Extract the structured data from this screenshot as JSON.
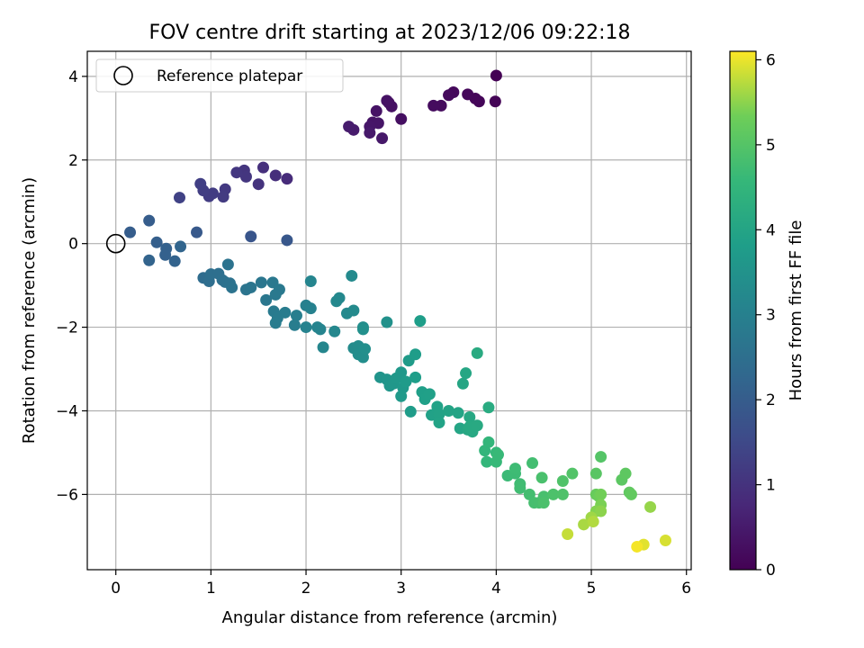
{
  "chart_data": {
    "type": "scatter",
    "title": "FOV centre drift starting at 2023/12/06 09:22:18",
    "xlabel": "Angular distance from reference (arcmin)",
    "ylabel": "Rotation from reference (arcmin)",
    "xlim": [
      -0.3,
      6.05
    ],
    "ylim": [
      -7.8,
      4.6
    ],
    "x_ticks": [
      0,
      1,
      2,
      3,
      4,
      5,
      6
    ],
    "y_ticks": [
      -6,
      -4,
      -2,
      0,
      2,
      4
    ],
    "grid": true,
    "legend": {
      "placement": "top-left",
      "entries": [
        "Reference platepar"
      ]
    },
    "colorbar": {
      "label": "Hours from first FF file",
      "range": [
        0,
        6.1
      ],
      "ticks": [
        0,
        1,
        2,
        3,
        4,
        5,
        6
      ],
      "colormap": "viridis"
    },
    "reference_point": {
      "x": 0,
      "y": 0
    },
    "points": [
      {
        "x": 4.0,
        "y": 4.02,
        "h": 0.0
      },
      {
        "x": 3.99,
        "y": 3.4,
        "h": 0.05
      },
      {
        "x": 3.82,
        "y": 3.4,
        "h": 0.08
      },
      {
        "x": 3.78,
        "y": 3.47,
        "h": 0.1
      },
      {
        "x": 3.7,
        "y": 3.57,
        "h": 0.12
      },
      {
        "x": 3.55,
        "y": 3.62,
        "h": 0.15
      },
      {
        "x": 3.5,
        "y": 3.55,
        "h": 0.18
      },
      {
        "x": 3.42,
        "y": 3.3,
        "h": 0.2
      },
      {
        "x": 3.34,
        "y": 3.3,
        "h": 0.22
      },
      {
        "x": 3.0,
        "y": 2.98,
        "h": 0.28
      },
      {
        "x": 2.87,
        "y": 3.37,
        "h": 0.3
      },
      {
        "x": 2.9,
        "y": 3.28,
        "h": 0.32
      },
      {
        "x": 2.85,
        "y": 3.42,
        "h": 0.33
      },
      {
        "x": 2.74,
        "y": 3.17,
        "h": 0.35
      },
      {
        "x": 2.7,
        "y": 2.9,
        "h": 0.38
      },
      {
        "x": 2.76,
        "y": 2.88,
        "h": 0.4
      },
      {
        "x": 2.67,
        "y": 2.8,
        "h": 0.42
      },
      {
        "x": 2.8,
        "y": 2.52,
        "h": 0.45
      },
      {
        "x": 2.67,
        "y": 2.65,
        "h": 0.48
      },
      {
        "x": 2.5,
        "y": 2.72,
        "h": 0.5
      },
      {
        "x": 2.45,
        "y": 2.8,
        "h": 0.52
      },
      {
        "x": 1.8,
        "y": 1.55,
        "h": 0.85
      },
      {
        "x": 1.68,
        "y": 1.63,
        "h": 0.9
      },
      {
        "x": 1.55,
        "y": 1.82,
        "h": 0.95
      },
      {
        "x": 1.5,
        "y": 1.42,
        "h": 1.0
      },
      {
        "x": 1.35,
        "y": 1.75,
        "h": 1.05
      },
      {
        "x": 1.37,
        "y": 1.6,
        "h": 1.08
      },
      {
        "x": 1.27,
        "y": 1.7,
        "h": 1.1
      },
      {
        "x": 1.15,
        "y": 1.3,
        "h": 1.15
      },
      {
        "x": 1.13,
        "y": 1.12,
        "h": 1.18
      },
      {
        "x": 1.02,
        "y": 1.2,
        "h": 1.2
      },
      {
        "x": 0.98,
        "y": 1.13,
        "h": 1.22
      },
      {
        "x": 0.92,
        "y": 1.27,
        "h": 1.25
      },
      {
        "x": 0.89,
        "y": 1.43,
        "h": 1.28
      },
      {
        "x": 0.67,
        "y": 1.1,
        "h": 1.35
      },
      {
        "x": 1.42,
        "y": 0.17,
        "h": 1.8
      },
      {
        "x": 1.8,
        "y": 0.08,
        "h": 1.85
      },
      {
        "x": 0.85,
        "y": 0.27,
        "h": 1.9
      },
      {
        "x": 0.15,
        "y": 0.27,
        "h": 2.0
      },
      {
        "x": 0.35,
        "y": 0.55,
        "h": 2.02
      },
      {
        "x": 0.43,
        "y": 0.03,
        "h": 2.05
      },
      {
        "x": 0.53,
        "y": -0.12,
        "h": 2.1
      },
      {
        "x": 0.52,
        "y": -0.27,
        "h": 2.12
      },
      {
        "x": 0.62,
        "y": -0.42,
        "h": 2.15
      },
      {
        "x": 0.35,
        "y": -0.4,
        "h": 2.18
      },
      {
        "x": 0.68,
        "y": -0.07,
        "h": 2.2
      },
      {
        "x": 0.92,
        "y": -0.82,
        "h": 2.4
      },
      {
        "x": 0.98,
        "y": -0.9,
        "h": 2.45
      },
      {
        "x": 1.0,
        "y": -0.73,
        "h": 2.48
      },
      {
        "x": 1.08,
        "y": -0.72,
        "h": 2.5
      },
      {
        "x": 1.12,
        "y": -0.87,
        "h": 2.52
      },
      {
        "x": 1.15,
        "y": -0.92,
        "h": 2.55
      },
      {
        "x": 1.2,
        "y": -0.95,
        "h": 2.58
      },
      {
        "x": 1.18,
        "y": -0.5,
        "h": 2.6
      },
      {
        "x": 1.22,
        "y": -1.05,
        "h": 2.62
      },
      {
        "x": 1.37,
        "y": -1.1,
        "h": 2.65
      },
      {
        "x": 1.42,
        "y": -1.05,
        "h": 2.68
      },
      {
        "x": 1.53,
        "y": -0.93,
        "h": 2.7
      },
      {
        "x": 1.58,
        "y": -1.35,
        "h": 2.72
      },
      {
        "x": 1.65,
        "y": -0.93,
        "h": 2.75
      },
      {
        "x": 1.72,
        "y": -1.1,
        "h": 2.78
      },
      {
        "x": 1.68,
        "y": -1.22,
        "h": 2.8
      },
      {
        "x": 1.66,
        "y": -1.62,
        "h": 2.82
      },
      {
        "x": 1.7,
        "y": -1.78,
        "h": 2.84
      },
      {
        "x": 1.68,
        "y": -1.9,
        "h": 2.86
      },
      {
        "x": 1.78,
        "y": -1.65,
        "h": 2.88
      },
      {
        "x": 1.88,
        "y": -1.95,
        "h": 2.9
      },
      {
        "x": 1.9,
        "y": -1.72,
        "h": 2.92
      },
      {
        "x": 2.0,
        "y": -1.48,
        "h": 3.0
      },
      {
        "x": 2.05,
        "y": -1.55,
        "h": 3.02
      },
      {
        "x": 2.0,
        "y": -2.0,
        "h": 3.05
      },
      {
        "x": 2.12,
        "y": -2.0,
        "h": 3.08
      },
      {
        "x": 2.15,
        "y": -2.05,
        "h": 3.1
      },
      {
        "x": 2.05,
        "y": -0.9,
        "h": 3.12
      },
      {
        "x": 2.18,
        "y": -2.48,
        "h": 3.15
      },
      {
        "x": 2.3,
        "y": -2.1,
        "h": 3.18
      },
      {
        "x": 2.32,
        "y": -1.38,
        "h": 3.2
      },
      {
        "x": 2.35,
        "y": -1.3,
        "h": 3.22
      },
      {
        "x": 2.43,
        "y": -1.67,
        "h": 3.24
      },
      {
        "x": 2.48,
        "y": -0.77,
        "h": 3.26
      },
      {
        "x": 2.5,
        "y": -1.6,
        "h": 3.28
      },
      {
        "x": 2.5,
        "y": -2.5,
        "h": 3.3
      },
      {
        "x": 2.55,
        "y": -2.45,
        "h": 3.32
      },
      {
        "x": 2.6,
        "y": -2.0,
        "h": 3.34
      },
      {
        "x": 2.55,
        "y": -2.65,
        "h": 3.36
      },
      {
        "x": 2.6,
        "y": -2.72,
        "h": 3.38
      },
      {
        "x": 2.62,
        "y": -2.52,
        "h": 3.4
      },
      {
        "x": 2.6,
        "y": -2.05,
        "h": 3.42
      },
      {
        "x": 2.85,
        "y": -1.88,
        "h": 3.45
      },
      {
        "x": 2.78,
        "y": -3.2,
        "h": 3.55
      },
      {
        "x": 2.85,
        "y": -3.25,
        "h": 3.57
      },
      {
        "x": 2.88,
        "y": -3.4,
        "h": 3.6
      },
      {
        "x": 2.92,
        "y": -3.35,
        "h": 3.62
      },
      {
        "x": 2.95,
        "y": -3.22,
        "h": 3.64
      },
      {
        "x": 3.0,
        "y": -3.08,
        "h": 3.66
      },
      {
        "x": 3.02,
        "y": -3.45,
        "h": 3.68
      },
      {
        "x": 3.0,
        "y": -3.65,
        "h": 3.7
      },
      {
        "x": 3.05,
        "y": -3.3,
        "h": 3.72
      },
      {
        "x": 3.08,
        "y": -2.8,
        "h": 3.74
      },
      {
        "x": 3.1,
        "y": -4.02,
        "h": 3.76
      },
      {
        "x": 3.15,
        "y": -2.65,
        "h": 3.78
      },
      {
        "x": 3.15,
        "y": -3.2,
        "h": 3.8
      },
      {
        "x": 3.2,
        "y": -1.85,
        "h": 3.82
      },
      {
        "x": 3.22,
        "y": -3.55,
        "h": 3.84
      },
      {
        "x": 3.25,
        "y": -3.72,
        "h": 3.86
      },
      {
        "x": 3.3,
        "y": -3.6,
        "h": 3.88
      },
      {
        "x": 3.32,
        "y": -4.1,
        "h": 3.9
      },
      {
        "x": 3.38,
        "y": -3.9,
        "h": 3.92
      },
      {
        "x": 3.4,
        "y": -4.08,
        "h": 3.94
      },
      {
        "x": 3.4,
        "y": -4.28,
        "h": 3.96
      },
      {
        "x": 3.5,
        "y": -4.0,
        "h": 3.98
      },
      {
        "x": 3.6,
        "y": -4.05,
        "h": 4.0
      },
      {
        "x": 3.62,
        "y": -4.42,
        "h": 4.02
      },
      {
        "x": 3.65,
        "y": -3.35,
        "h": 4.04
      },
      {
        "x": 3.68,
        "y": -3.1,
        "h": 4.06
      },
      {
        "x": 3.7,
        "y": -4.45,
        "h": 4.08
      },
      {
        "x": 3.72,
        "y": -4.15,
        "h": 4.1
      },
      {
        "x": 3.75,
        "y": -4.5,
        "h": 4.12
      },
      {
        "x": 3.72,
        "y": -4.38,
        "h": 4.14
      },
      {
        "x": 3.8,
        "y": -4.35,
        "h": 4.16
      },
      {
        "x": 3.8,
        "y": -2.62,
        "h": 4.18
      },
      {
        "x": 3.92,
        "y": -3.92,
        "h": 4.2
      },
      {
        "x": 3.88,
        "y": -4.95,
        "h": 4.5
      },
      {
        "x": 3.92,
        "y": -4.75,
        "h": 4.52
      },
      {
        "x": 3.9,
        "y": -5.22,
        "h": 4.55
      },
      {
        "x": 4.0,
        "y": -5.0,
        "h": 4.58
      },
      {
        "x": 4.0,
        "y": -5.22,
        "h": 4.6
      },
      {
        "x": 4.02,
        "y": -5.05,
        "h": 4.62
      },
      {
        "x": 4.12,
        "y": -5.55,
        "h": 4.65
      },
      {
        "x": 4.2,
        "y": -5.5,
        "h": 4.68
      },
      {
        "x": 4.2,
        "y": -5.38,
        "h": 4.7
      },
      {
        "x": 4.25,
        "y": -5.75,
        "h": 4.72
      },
      {
        "x": 4.25,
        "y": -5.85,
        "h": 4.74
      },
      {
        "x": 4.38,
        "y": -5.25,
        "h": 4.76
      },
      {
        "x": 4.35,
        "y": -6.0,
        "h": 4.78
      },
      {
        "x": 4.4,
        "y": -6.2,
        "h": 4.8
      },
      {
        "x": 4.45,
        "y": -6.2,
        "h": 4.82
      },
      {
        "x": 4.5,
        "y": -6.05,
        "h": 4.84
      },
      {
        "x": 4.48,
        "y": -5.6,
        "h": 4.86
      },
      {
        "x": 4.5,
        "y": -6.2,
        "h": 4.88
      },
      {
        "x": 4.6,
        "y": -6.0,
        "h": 4.9
      },
      {
        "x": 4.7,
        "y": -6.0,
        "h": 4.92
      },
      {
        "x": 4.7,
        "y": -5.68,
        "h": 4.94
      },
      {
        "x": 4.8,
        "y": -5.5,
        "h": 4.96
      },
      {
        "x": 5.1,
        "y": -5.1,
        "h": 5.0
      },
      {
        "x": 5.05,
        "y": -5.5,
        "h": 5.05
      },
      {
        "x": 5.32,
        "y": -5.65,
        "h": 5.1
      },
      {
        "x": 5.36,
        "y": -5.5,
        "h": 5.12
      },
      {
        "x": 5.4,
        "y": -5.95,
        "h": 5.15
      },
      {
        "x": 5.42,
        "y": -6.0,
        "h": 5.18
      },
      {
        "x": 5.05,
        "y": -6.0,
        "h": 5.25
      },
      {
        "x": 5.08,
        "y": -6.05,
        "h": 5.3
      },
      {
        "x": 5.1,
        "y": -6.0,
        "h": 5.35
      },
      {
        "x": 5.1,
        "y": -6.25,
        "h": 5.4
      },
      {
        "x": 5.05,
        "y": -6.4,
        "h": 5.45
      },
      {
        "x": 5.1,
        "y": -6.4,
        "h": 5.5
      },
      {
        "x": 5.62,
        "y": -6.3,
        "h": 5.55
      },
      {
        "x": 5.0,
        "y": -6.55,
        "h": 5.6
      },
      {
        "x": 4.92,
        "y": -6.72,
        "h": 5.65
      },
      {
        "x": 5.02,
        "y": -6.65,
        "h": 5.7
      },
      {
        "x": 4.75,
        "y": -6.95,
        "h": 5.8
      },
      {
        "x": 5.78,
        "y": -7.1,
        "h": 5.9
      },
      {
        "x": 5.55,
        "y": -7.2,
        "h": 5.95
      },
      {
        "x": 5.48,
        "y": -7.25,
        "h": 6.05
      }
    ]
  }
}
